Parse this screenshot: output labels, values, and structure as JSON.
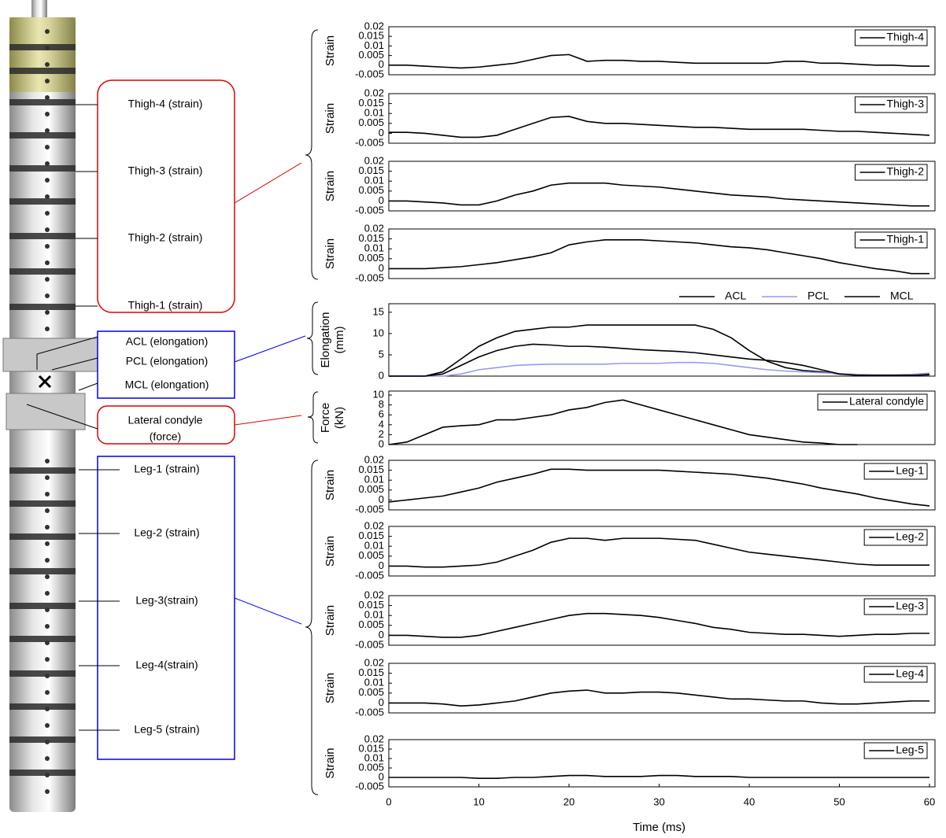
{
  "annotations": [
    "Thigh-4 (strain)",
    "Thigh-3 (strain)",
    "Thigh-2 (strain)",
    "Thigh-1 (strain)",
    "ACL (elongation)",
    "PCL (elongation)",
    "MCL (elongation)",
    "Lateral condyle",
    "(force)",
    "Leg-1 (strain)",
    "Leg-2 (strain)",
    "Leg-3(strain)",
    "Leg-4(strain)",
    "Leg-5 (strain)"
  ],
  "chart_data": [
    {
      "type": "line",
      "ylabel": "Strain",
      "xlim": [
        0,
        60
      ],
      "ylim": [
        -0.005,
        0.02
      ],
      "yticks": [
        -0.005,
        0,
        0.005,
        0.01,
        0.015,
        0.02
      ],
      "legend": "upper right",
      "x": [
        0,
        2,
        4,
        6,
        8,
        10,
        12,
        14,
        16,
        18,
        20,
        22,
        24,
        26,
        28,
        30,
        32,
        34,
        36,
        38,
        40,
        42,
        44,
        46,
        48,
        50,
        52,
        54,
        56,
        58,
        60
      ],
      "series": [
        {
          "name": "Thigh-4",
          "color": "#000000",
          "values": [
            0,
            0,
            -0.0005,
            -0.001,
            -0.0015,
            -0.001,
            0,
            0.001,
            0.003,
            0.005,
            0.0055,
            0.002,
            0.0025,
            0.0025,
            0.002,
            0.002,
            0.0015,
            0.001,
            0.001,
            0.001,
            0.001,
            0.001,
            0.002,
            0.002,
            0.001,
            0.001,
            0.0005,
            0,
            0,
            -0.0005,
            -0.0005
          ]
        }
      ]
    },
    {
      "type": "line",
      "ylabel": "Strain",
      "xlim": [
        0,
        60
      ],
      "ylim": [
        -0.005,
        0.02
      ],
      "yticks": [
        -0.005,
        0,
        0.005,
        0.01,
        0.015,
        0.02
      ],
      "legend": "upper right",
      "x": [
        0,
        2,
        4,
        6,
        8,
        10,
        12,
        14,
        16,
        18,
        20,
        22,
        24,
        26,
        28,
        30,
        32,
        34,
        36,
        38,
        40,
        42,
        44,
        46,
        48,
        50,
        52,
        54,
        56,
        58,
        60
      ],
      "series": [
        {
          "name": "Thigh-3",
          "color": "#000000",
          "values": [
            0.0005,
            0.0005,
            0,
            -0.001,
            -0.002,
            -0.002,
            -0.001,
            0.002,
            0.005,
            0.008,
            0.0085,
            0.006,
            0.005,
            0.005,
            0.0045,
            0.004,
            0.0035,
            0.003,
            0.003,
            0.0025,
            0.002,
            0.002,
            0.002,
            0.002,
            0.0015,
            0.001,
            0.001,
            0.0005,
            0,
            -0.0005,
            -0.001
          ]
        }
      ]
    },
    {
      "type": "line",
      "ylabel": "Strain",
      "xlim": [
        0,
        60
      ],
      "ylim": [
        -0.005,
        0.02
      ],
      "yticks": [
        -0.005,
        0,
        0.005,
        0.01,
        0.015,
        0.02
      ],
      "legend": "upper right",
      "x": [
        0,
        2,
        4,
        6,
        8,
        10,
        12,
        14,
        16,
        18,
        20,
        22,
        24,
        26,
        28,
        30,
        32,
        34,
        36,
        38,
        40,
        42,
        44,
        46,
        48,
        50,
        52,
        54,
        56,
        58,
        60
      ],
      "series": [
        {
          "name": "Thigh-2",
          "color": "#000000",
          "values": [
            0,
            0,
            -0.0005,
            -0.001,
            -0.002,
            -0.002,
            0,
            0.003,
            0.005,
            0.008,
            0.009,
            0.009,
            0.009,
            0.008,
            0.0075,
            0.007,
            0.006,
            0.005,
            0.004,
            0.003,
            0.0025,
            0.002,
            0.001,
            0.0005,
            0,
            -0.0005,
            -0.001,
            -0.0015,
            -0.002,
            -0.0025,
            -0.0025
          ]
        }
      ]
    },
    {
      "type": "line",
      "ylabel": "Strain",
      "xlim": [
        0,
        60
      ],
      "ylim": [
        -0.005,
        0.02
      ],
      "yticks": [
        -0.005,
        0,
        0.005,
        0.01,
        0.015,
        0.02
      ],
      "legend": "upper right",
      "x": [
        0,
        2,
        4,
        6,
        8,
        10,
        12,
        14,
        16,
        18,
        20,
        22,
        24,
        26,
        28,
        30,
        32,
        34,
        36,
        38,
        40,
        42,
        44,
        46,
        48,
        50,
        52,
        54,
        56,
        58,
        60
      ],
      "series": [
        {
          "name": "Thigh-1",
          "color": "#000000",
          "values": [
            0,
            0,
            0,
            0.0005,
            0.001,
            0.002,
            0.003,
            0.0045,
            0.006,
            0.008,
            0.012,
            0.0135,
            0.0145,
            0.0145,
            0.0145,
            0.014,
            0.0135,
            0.013,
            0.012,
            0.011,
            0.0105,
            0.0095,
            0.008,
            0.0065,
            0.005,
            0.003,
            0.0015,
            0,
            -0.001,
            -0.0025,
            -0.0025
          ]
        }
      ]
    },
    {
      "type": "line",
      "ylabel": [
        "Elongation",
        "(mm)"
      ],
      "xlim": [
        0,
        60
      ],
      "ylim": [
        0,
        17
      ],
      "yticks": [
        0,
        5,
        10,
        15
      ],
      "legend": "top",
      "x": [
        0,
        2,
        4,
        6,
        8,
        10,
        12,
        14,
        16,
        18,
        20,
        22,
        24,
        26,
        28,
        30,
        32,
        34,
        36,
        38,
        40,
        42,
        44,
        46,
        48,
        50,
        52,
        54,
        56,
        58,
        60
      ],
      "series": [
        {
          "name": "ACL",
          "color": "#000000",
          "values": [
            0,
            0,
            0,
            1,
            4,
            7,
            9,
            10.5,
            11,
            11.5,
            11.5,
            12,
            12,
            12,
            12,
            12,
            12,
            12,
            11,
            9,
            6,
            3.5,
            2,
            1.3,
            1,
            0.5,
            0.3,
            0.2,
            0.2,
            0.2,
            0.5
          ]
        },
        {
          "name": "PCL",
          "color": "#9999ee",
          "values": [
            0,
            0,
            0,
            0,
            0.5,
            1.5,
            2,
            2.5,
            2.7,
            2.8,
            2.8,
            2.8,
            2.8,
            3,
            3,
            3,
            3.2,
            3.2,
            3,
            2.5,
            2,
            1.5,
            1.2,
            1,
            0.8,
            0.6,
            0.4,
            0.3,
            0.3,
            0.4,
            0.7
          ]
        },
        {
          "name": "MCL",
          "color": "#000000",
          "values": [
            0,
            0,
            0,
            0.5,
            2.5,
            4.5,
            6,
            7,
            7.5,
            7.3,
            7,
            7,
            6.8,
            6.5,
            6.2,
            6,
            5.8,
            5.5,
            5,
            4.5,
            4,
            3.7,
            3.2,
            2.5,
            1.5,
            0.5,
            0.2,
            0.2,
            0.2,
            0.2,
            0.3
          ]
        }
      ]
    },
    {
      "type": "line",
      "ylabel": [
        "Force",
        "(kN)"
      ],
      "xlim": [
        0,
        60
      ],
      "ylim": [
        0,
        10.8
      ],
      "yticks": [
        0,
        2,
        4,
        6,
        8,
        10
      ],
      "legend": "upper right",
      "x": [
        0,
        2,
        4,
        6,
        8,
        10,
        12,
        14,
        16,
        18,
        20,
        22,
        24,
        26,
        28,
        30,
        32,
        34,
        36,
        38,
        40,
        42,
        44,
        46,
        48,
        50,
        52,
        54,
        56,
        58,
        60
      ],
      "series": [
        {
          "name": "Lateral condyle",
          "color": "#000000",
          "values": [
            0,
            0.5,
            2,
            3.5,
            3.8,
            4,
            5,
            5,
            5.5,
            6,
            7,
            7.5,
            8.5,
            9,
            8,
            7,
            6,
            5,
            4,
            3,
            2,
            1.5,
            1,
            0.5,
            0.3,
            0,
            0,
            null,
            null,
            null,
            null
          ]
        }
      ]
    },
    {
      "type": "line",
      "ylabel": "Strain",
      "xlim": [
        0,
        60
      ],
      "ylim": [
        -0.005,
        0.02
      ],
      "yticks": [
        -0.005,
        0,
        0.005,
        0.01,
        0.015,
        0.02
      ],
      "legend": "upper right",
      "x": [
        0,
        2,
        4,
        6,
        8,
        10,
        12,
        14,
        16,
        18,
        20,
        22,
        24,
        26,
        28,
        30,
        32,
        34,
        36,
        38,
        40,
        42,
        44,
        46,
        48,
        50,
        52,
        54,
        56,
        58,
        60
      ],
      "series": [
        {
          "name": "Leg-1",
          "color": "#000000",
          "values": [
            -0.001,
            0,
            0.001,
            0.002,
            0.004,
            0.006,
            0.009,
            0.011,
            0.013,
            0.0155,
            0.0155,
            0.015,
            0.015,
            0.015,
            0.015,
            0.015,
            0.0145,
            0.014,
            0.0135,
            0.013,
            0.012,
            0.011,
            0.0095,
            0.008,
            0.006,
            0.0045,
            0.003,
            0.001,
            -0.0005,
            -0.002,
            -0.003
          ]
        }
      ]
    },
    {
      "type": "line",
      "ylabel": "Strain",
      "xlim": [
        0,
        60
      ],
      "ylim": [
        -0.005,
        0.02
      ],
      "yticks": [
        -0.005,
        0,
        0.005,
        0.01,
        0.015,
        0.02
      ],
      "legend": "upper right",
      "x": [
        0,
        2,
        4,
        6,
        8,
        10,
        12,
        14,
        16,
        18,
        20,
        22,
        24,
        26,
        28,
        30,
        32,
        34,
        36,
        38,
        40,
        42,
        44,
        46,
        48,
        50,
        52,
        54,
        56,
        58,
        60
      ],
      "series": [
        {
          "name": "Leg-2",
          "color": "#000000",
          "values": [
            0,
            0,
            -0.0005,
            -0.0005,
            0,
            0.0005,
            0.002,
            0.005,
            0.008,
            0.012,
            0.014,
            0.014,
            0.013,
            0.014,
            0.014,
            0.014,
            0.0135,
            0.013,
            0.011,
            0.009,
            0.007,
            0.006,
            0.005,
            0.004,
            0.003,
            0.002,
            0.001,
            0.0005,
            0.0005,
            0.0005,
            0.0005
          ]
        }
      ]
    },
    {
      "type": "line",
      "ylabel": "Strain",
      "xlim": [
        0,
        60
      ],
      "ylim": [
        -0.005,
        0.02
      ],
      "yticks": [
        -0.005,
        0,
        0.005,
        0.01,
        0.015,
        0.02
      ],
      "legend": "upper right",
      "x": [
        0,
        2,
        4,
        6,
        8,
        10,
        12,
        14,
        16,
        18,
        20,
        22,
        24,
        26,
        28,
        30,
        32,
        34,
        36,
        38,
        40,
        42,
        44,
        46,
        48,
        50,
        52,
        54,
        56,
        58,
        60
      ],
      "series": [
        {
          "name": "Leg-3",
          "color": "#000000",
          "values": [
            0,
            0,
            -0.0005,
            -0.001,
            -0.001,
            0,
            0.002,
            0.004,
            0.006,
            0.008,
            0.01,
            0.011,
            0.011,
            0.0105,
            0.01,
            0.009,
            0.0075,
            0.006,
            0.004,
            0.003,
            0.0015,
            0.001,
            0.0005,
            0.0005,
            0,
            -0.0005,
            0,
            0.0005,
            0.0005,
            0.001,
            0.001
          ]
        }
      ]
    },
    {
      "type": "line",
      "ylabel": "Strain",
      "xlim": [
        0,
        60
      ],
      "ylim": [
        -0.005,
        0.02
      ],
      "yticks": [
        -0.005,
        0,
        0.005,
        0.01,
        0.015,
        0.02
      ],
      "legend": "upper right",
      "x": [
        0,
        2,
        4,
        6,
        8,
        10,
        12,
        14,
        16,
        18,
        20,
        22,
        24,
        26,
        28,
        30,
        32,
        34,
        36,
        38,
        40,
        42,
        44,
        46,
        48,
        50,
        52,
        54,
        56,
        58,
        60
      ],
      "series": [
        {
          "name": "Leg-4",
          "color": "#000000",
          "values": [
            0,
            0,
            0,
            -0.0005,
            -0.0015,
            -0.001,
            0,
            0.001,
            0.003,
            0.005,
            0.006,
            0.0065,
            0.005,
            0.005,
            0.0055,
            0.0055,
            0.005,
            0.004,
            0.003,
            0.002,
            0.002,
            0.0015,
            0.001,
            0.001,
            0,
            -0.0005,
            -0.0005,
            0,
            0.0005,
            0.001,
            0.001
          ]
        }
      ]
    },
    {
      "type": "line",
      "ylabel": "Strain",
      "xlim": [
        0,
        60
      ],
      "ylim": [
        -0.005,
        0.02
      ],
      "yticks": [
        -0.005,
        0,
        0.005,
        0.01,
        0.015,
        0.02
      ],
      "legend": "upper right",
      "xlabel": "Time (ms)",
      "xticks": [
        0,
        10,
        20,
        30,
        40,
        50,
        60
      ],
      "x": [
        0,
        2,
        4,
        6,
        8,
        10,
        12,
        14,
        16,
        18,
        20,
        22,
        24,
        26,
        28,
        30,
        32,
        34,
        36,
        38,
        40,
        42,
        44,
        46,
        48,
        50,
        52,
        54,
        56,
        58,
        60
      ],
      "series": [
        {
          "name": "Leg-5",
          "color": "#000000",
          "values": [
            0,
            0,
            0,
            0,
            0,
            -0.0005,
            -0.0005,
            0,
            0,
            0.0005,
            0.001,
            0.001,
            0.0005,
            0.0005,
            0.0005,
            0.001,
            0.001,
            0.0005,
            0.0005,
            0.0005,
            0,
            0,
            0,
            0,
            0,
            0,
            0,
            0,
            0,
            0,
            0
          ]
        }
      ]
    }
  ]
}
